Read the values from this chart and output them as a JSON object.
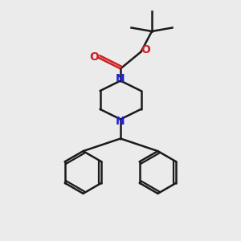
{
  "bg_color": "#ebebeb",
  "bond_color": "#1a1a1a",
  "nitrogen_color": "#2020cc",
  "oxygen_color": "#cc2020",
  "line_width": 1.8,
  "fig_size": [
    3.0,
    3.0
  ],
  "dpi": 100,
  "xlim": [
    0,
    10
  ],
  "ylim": [
    0,
    10
  ]
}
